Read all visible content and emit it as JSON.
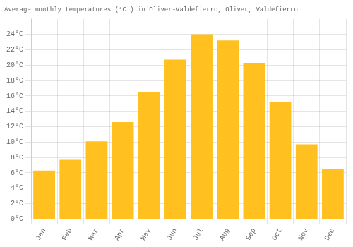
{
  "chart_data": {
    "type": "bar",
    "title": "Average monthly temperatures (°C ) in Oliver-Valdefierro, Oliver, Valdefierro",
    "categories": [
      "Jan",
      "Feb",
      "Mar",
      "Apr",
      "May",
      "Jun",
      "Jul",
      "Aug",
      "Sep",
      "Oct",
      "Nov",
      "Dec"
    ],
    "values": [
      6.3,
      7.7,
      10.1,
      12.6,
      16.5,
      20.7,
      24.0,
      23.2,
      20.3,
      15.2,
      9.7,
      6.5
    ],
    "color": "#FFC020",
    "ylim": [
      0,
      26
    ],
    "yticks": [
      {
        "value": 0,
        "label": "0°C"
      },
      {
        "value": 2,
        "label": "2°C"
      },
      {
        "value": 4,
        "label": "4°C"
      },
      {
        "value": 6,
        "label": "6°C"
      },
      {
        "value": 8,
        "label": "8°C"
      },
      {
        "value": 10,
        "label": "10°C"
      },
      {
        "value": 12,
        "label": "12°C"
      },
      {
        "value": 14,
        "label": "14°C"
      },
      {
        "value": 16,
        "label": "16°C"
      },
      {
        "value": 18,
        "label": "18°C"
      },
      {
        "value": 20,
        "label": "20°C"
      },
      {
        "value": 22,
        "label": "22°C"
      },
      {
        "value": 24,
        "label": "24°C"
      }
    ],
    "grid": true
  }
}
